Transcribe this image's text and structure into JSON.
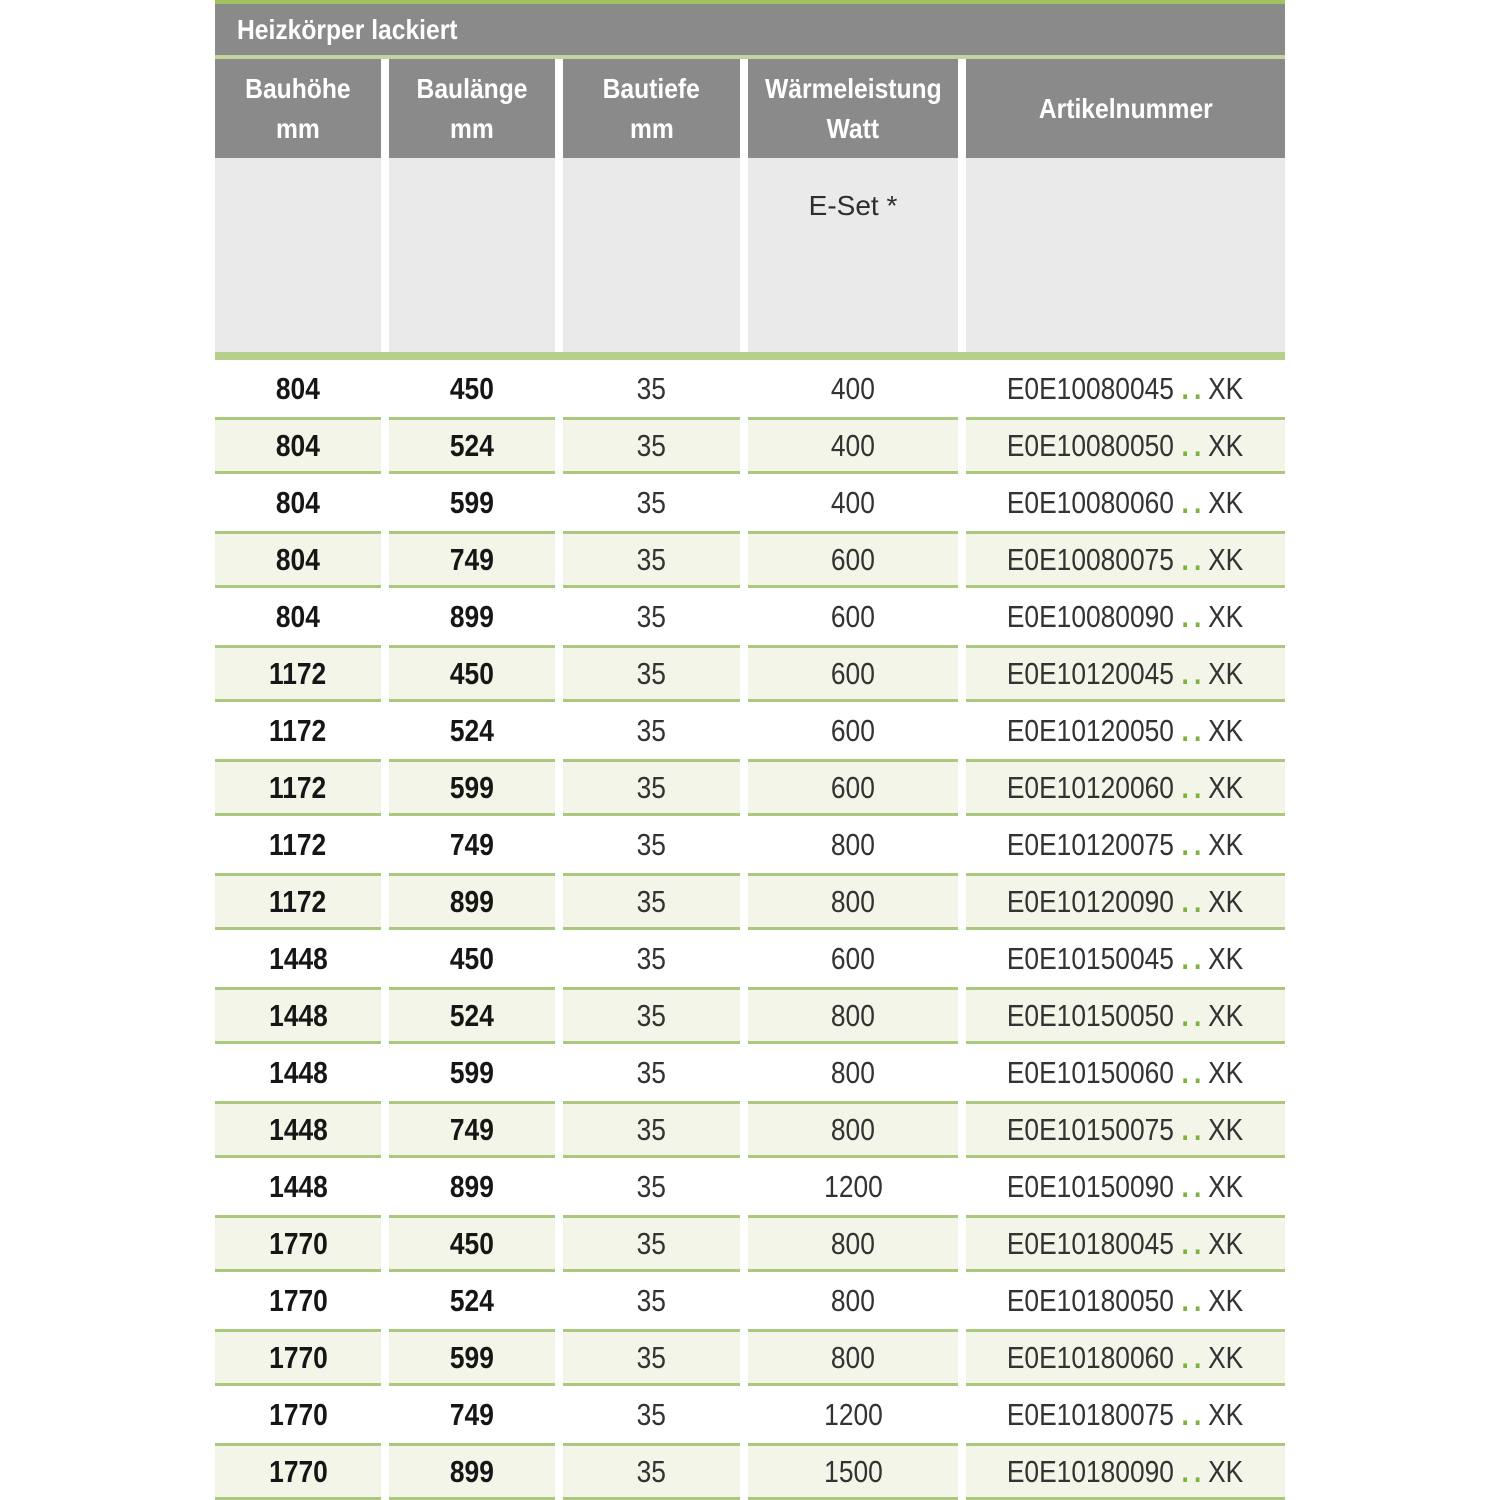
{
  "table": {
    "title": "Heizkörper lackiert",
    "columns": [
      {
        "line1": "Bauhöhe",
        "line2": "mm"
      },
      {
        "line1": "Baulänge",
        "line2": "mm"
      },
      {
        "line1": "Bautiefe",
        "line2": "mm"
      },
      {
        "line1": "Wärmeleistung",
        "line2": "Watt"
      },
      {
        "line1": "Artikelnummer",
        "line2": ""
      }
    ],
    "subheader": {
      "eset_label": "E-Set *"
    },
    "rows": [
      {
        "bauhoehe": "804",
        "baulaenge": "450",
        "bautiefe": "35",
        "watt": "400",
        "art_prefix": "E0E10080045",
        "art_dots": "..",
        "art_suffix": "XK"
      },
      {
        "bauhoehe": "804",
        "baulaenge": "524",
        "bautiefe": "35",
        "watt": "400",
        "art_prefix": "E0E10080050",
        "art_dots": "..",
        "art_suffix": "XK"
      },
      {
        "bauhoehe": "804",
        "baulaenge": "599",
        "bautiefe": "35",
        "watt": "400",
        "art_prefix": "E0E10080060",
        "art_dots": "..",
        "art_suffix": "XK"
      },
      {
        "bauhoehe": "804",
        "baulaenge": "749",
        "bautiefe": "35",
        "watt": "600",
        "art_prefix": "E0E10080075",
        "art_dots": "..",
        "art_suffix": "XK"
      },
      {
        "bauhoehe": "804",
        "baulaenge": "899",
        "bautiefe": "35",
        "watt": "600",
        "art_prefix": "E0E10080090",
        "art_dots": "..",
        "art_suffix": "XK"
      },
      {
        "bauhoehe": "1172",
        "baulaenge": "450",
        "bautiefe": "35",
        "watt": "600",
        "art_prefix": "E0E10120045",
        "art_dots": "..",
        "art_suffix": "XK"
      },
      {
        "bauhoehe": "1172",
        "baulaenge": "524",
        "bautiefe": "35",
        "watt": "600",
        "art_prefix": "E0E10120050",
        "art_dots": "..",
        "art_suffix": "XK"
      },
      {
        "bauhoehe": "1172",
        "baulaenge": "599",
        "bautiefe": "35",
        "watt": "600",
        "art_prefix": "E0E10120060",
        "art_dots": "..",
        "art_suffix": "XK"
      },
      {
        "bauhoehe": "1172",
        "baulaenge": "749",
        "bautiefe": "35",
        "watt": "800",
        "art_prefix": "E0E10120075",
        "art_dots": "..",
        "art_suffix": "XK"
      },
      {
        "bauhoehe": "1172",
        "baulaenge": "899",
        "bautiefe": "35",
        "watt": "800",
        "art_prefix": "E0E10120090",
        "art_dots": "..",
        "art_suffix": "XK"
      },
      {
        "bauhoehe": "1448",
        "baulaenge": "450",
        "bautiefe": "35",
        "watt": "600",
        "art_prefix": "E0E10150045",
        "art_dots": "..",
        "art_suffix": "XK"
      },
      {
        "bauhoehe": "1448",
        "baulaenge": "524",
        "bautiefe": "35",
        "watt": "800",
        "art_prefix": "E0E10150050",
        "art_dots": "..",
        "art_suffix": "XK"
      },
      {
        "bauhoehe": "1448",
        "baulaenge": "599",
        "bautiefe": "35",
        "watt": "800",
        "art_prefix": "E0E10150060",
        "art_dots": "..",
        "art_suffix": "XK"
      },
      {
        "bauhoehe": "1448",
        "baulaenge": "749",
        "bautiefe": "35",
        "watt": "800",
        "art_prefix": "E0E10150075",
        "art_dots": "..",
        "art_suffix": "XK"
      },
      {
        "bauhoehe": "1448",
        "baulaenge": "899",
        "bautiefe": "35",
        "watt": "1200",
        "art_prefix": "E0E10150090",
        "art_dots": "..",
        "art_suffix": "XK"
      },
      {
        "bauhoehe": "1770",
        "baulaenge": "450",
        "bautiefe": "35",
        "watt": "800",
        "art_prefix": "E0E10180045",
        "art_dots": "..",
        "art_suffix": "XK"
      },
      {
        "bauhoehe": "1770",
        "baulaenge": "524",
        "bautiefe": "35",
        "watt": "800",
        "art_prefix": "E0E10180050",
        "art_dots": "..",
        "art_suffix": "XK"
      },
      {
        "bauhoehe": "1770",
        "baulaenge": "599",
        "bautiefe": "35",
        "watt": "800",
        "art_prefix": "E0E10180060",
        "art_dots": "..",
        "art_suffix": "XK"
      },
      {
        "bauhoehe": "1770",
        "baulaenge": "749",
        "bautiefe": "35",
        "watt": "1200",
        "art_prefix": "E0E10180075",
        "art_dots": "..",
        "art_suffix": "XK"
      },
      {
        "bauhoehe": "1770",
        "baulaenge": "899",
        "bautiefe": "35",
        "watt": "1500",
        "art_prefix": "E0E10180090",
        "art_dots": "..",
        "art_suffix": "XK"
      }
    ],
    "colors": {
      "header_gray": "#8a8a8a",
      "top_accent_green": "#a0c360",
      "divider_green": "#b6d089",
      "row_green_bg": "#f2f5e8",
      "row_green_border": "#abc87e",
      "subheader_gray": "#eaeaea",
      "dot_green": "#7db33c"
    }
  }
}
